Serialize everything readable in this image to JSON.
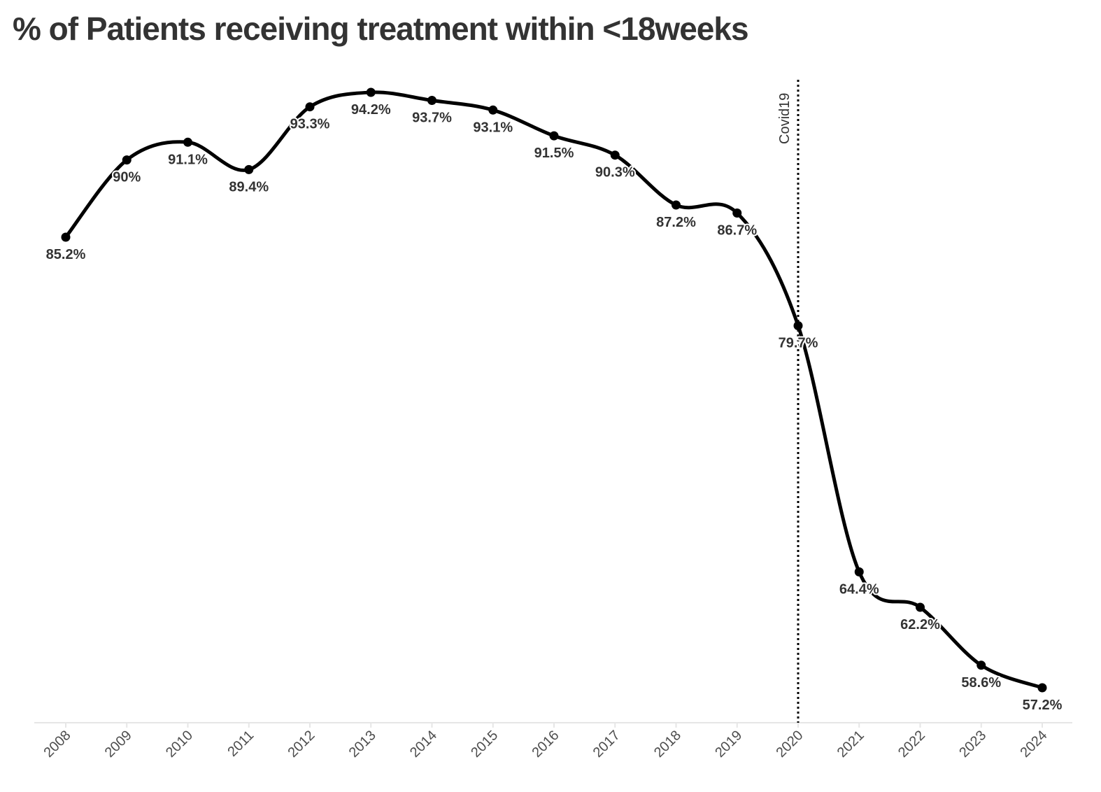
{
  "chart_data": {
    "type": "line",
    "title": "% of Patients receiving treatment within <18weeks",
    "xlabel": "",
    "ylabel": "",
    "categories": [
      "2008",
      "2009",
      "2010",
      "2011",
      "2012",
      "2013",
      "2014",
      "2015",
      "2016",
      "2017",
      "2018",
      "2019",
      "2020",
      "2021",
      "2022",
      "2023",
      "2024"
    ],
    "series": [
      {
        "values": [
          85.2,
          90,
          91.1,
          89.4,
          93.3,
          94.2,
          93.7,
          93.1,
          91.5,
          90.3,
          87.2,
          86.7,
          79.7,
          64.4,
          62.2,
          58.6,
          57.2
        ],
        "labels": [
          "85.2%",
          "90%",
          "91.1%",
          "89.4%",
          "93.3%",
          "94.2%",
          "93.7%",
          "93.1%",
          "91.5%",
          "90.3%",
          "87.2%",
          "86.7%",
          "79.7%",
          "64.4%",
          "62.2%",
          "58.6%",
          "57.2%"
        ]
      }
    ],
    "ylim": [
      55,
      95
    ],
    "grid": false,
    "legend": "none",
    "annotations": [
      {
        "type": "vline",
        "x": "2020",
        "label": "Covid19",
        "style": "dotted"
      }
    ],
    "colors": {
      "line": "#000000",
      "text": "#333333",
      "axis": "#e6e6e6",
      "tick_text": "#4d4d4d"
    }
  }
}
